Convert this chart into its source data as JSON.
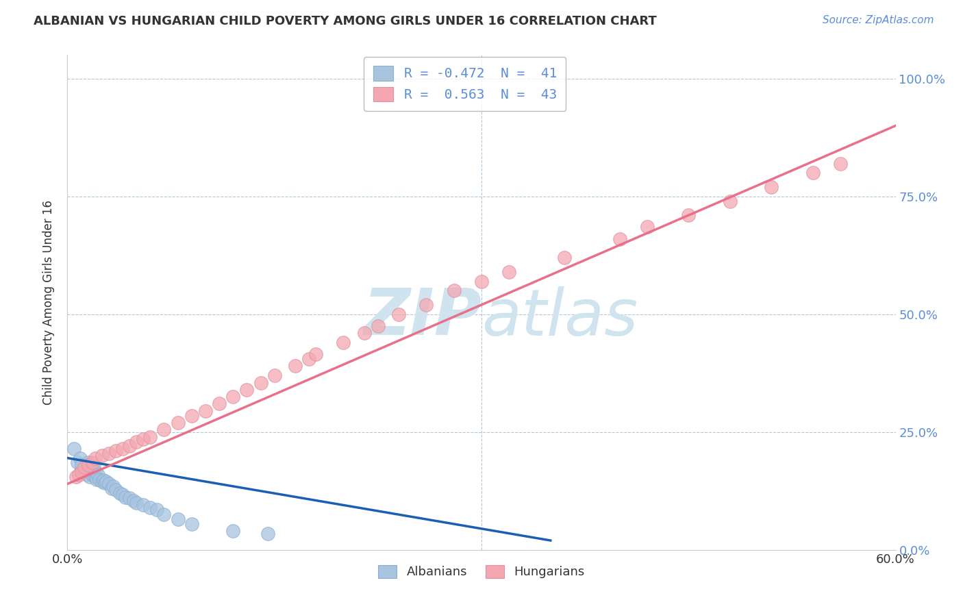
{
  "title": "ALBANIAN VS HUNGARIAN CHILD POVERTY AMONG GIRLS UNDER 16 CORRELATION CHART",
  "source": "Source: ZipAtlas.com",
  "ylabel": "Child Poverty Among Girls Under 16",
  "xlim": [
    0.0,
    0.6
  ],
  "ylim": [
    0.0,
    1.05
  ],
  "yticks_right": [
    0.0,
    0.25,
    0.5,
    0.75,
    1.0
  ],
  "ytick_right_labels": [
    "0.0%",
    "25.0%",
    "50.0%",
    "75.0%",
    "100.0%"
  ],
  "albanians_R": -0.472,
  "albanians_N": 41,
  "hungarians_R": 0.563,
  "hungarians_N": 43,
  "albanian_color": "#a8c4e0",
  "hungarian_color": "#f4a7b0",
  "albanian_line_color": "#1a5fb4",
  "hungarian_line_color": "#e8708a",
  "background_color": "#ffffff",
  "grid_color": "#b0c8d8",
  "watermark_color": "#d0e4f0",
  "albanians_x": [
    0.005,
    0.007,
    0.009,
    0.01,
    0.01,
    0.012,
    0.013,
    0.014,
    0.015,
    0.015,
    0.016,
    0.017,
    0.018,
    0.019,
    0.02,
    0.02,
    0.021,
    0.022,
    0.023,
    0.025,
    0.026,
    0.027,
    0.028,
    0.03,
    0.032,
    0.033,
    0.035,
    0.038,
    0.04,
    0.042,
    0.045,
    0.048,
    0.05,
    0.055,
    0.06,
    0.065,
    0.07,
    0.08,
    0.09,
    0.12,
    0.145
  ],
  "albanians_y": [
    0.215,
    0.185,
    0.195,
    0.17,
    0.18,
    0.165,
    0.175,
    0.16,
    0.17,
    0.185,
    0.155,
    0.165,
    0.16,
    0.175,
    0.155,
    0.165,
    0.15,
    0.16,
    0.15,
    0.145,
    0.148,
    0.142,
    0.145,
    0.14,
    0.13,
    0.135,
    0.128,
    0.12,
    0.118,
    0.112,
    0.11,
    0.105,
    0.1,
    0.095,
    0.09,
    0.085,
    0.075,
    0.065,
    0.055,
    0.04,
    0.035
  ],
  "hungarians_x": [
    0.006,
    0.008,
    0.01,
    0.012,
    0.015,
    0.018,
    0.02,
    0.025,
    0.03,
    0.035,
    0.04,
    0.045,
    0.05,
    0.055,
    0.06,
    0.07,
    0.08,
    0.09,
    0.1,
    0.11,
    0.12,
    0.13,
    0.14,
    0.15,
    0.165,
    0.175,
    0.18,
    0.2,
    0.215,
    0.225,
    0.24,
    0.26,
    0.28,
    0.3,
    0.32,
    0.36,
    0.4,
    0.42,
    0.45,
    0.48,
    0.51,
    0.54,
    0.56
  ],
  "hungarians_y": [
    0.155,
    0.16,
    0.165,
    0.175,
    0.18,
    0.185,
    0.195,
    0.2,
    0.205,
    0.21,
    0.215,
    0.22,
    0.23,
    0.235,
    0.24,
    0.255,
    0.27,
    0.285,
    0.295,
    0.31,
    0.325,
    0.34,
    0.355,
    0.37,
    0.39,
    0.405,
    0.415,
    0.44,
    0.46,
    0.475,
    0.5,
    0.52,
    0.55,
    0.57,
    0.59,
    0.62,
    0.66,
    0.685,
    0.71,
    0.74,
    0.77,
    0.8,
    0.82
  ],
  "alb_line_x0": 0.0,
  "alb_line_y0": 0.195,
  "alb_line_x1": 0.35,
  "alb_line_y1": 0.02,
  "hung_line_x0": 0.0,
  "hung_line_y0": 0.14,
  "hung_line_x1": 0.6,
  "hung_line_y1": 0.9
}
